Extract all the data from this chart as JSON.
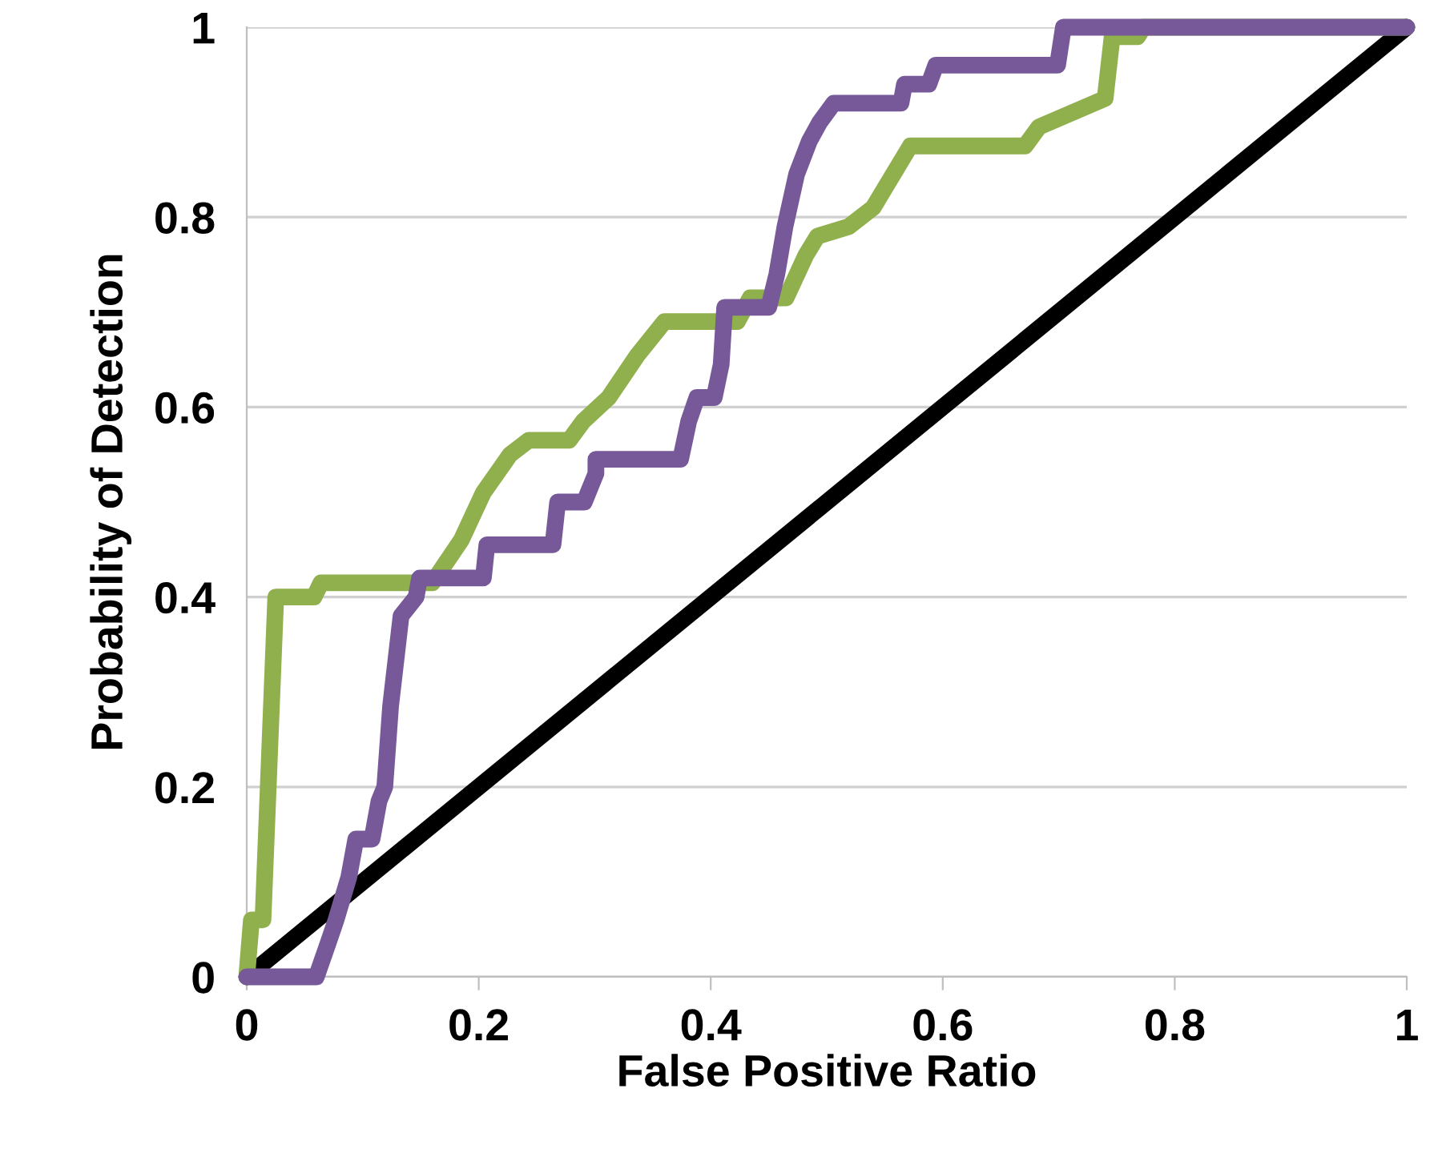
{
  "chart_data": {
    "type": "line",
    "xlabel": "False Positive Ratio",
    "ylabel": "Probability of Detection",
    "xlim": [
      0,
      1
    ],
    "ylim": [
      0,
      1
    ],
    "xticks": [
      0,
      0.2,
      0.4,
      0.6,
      0.8,
      1
    ],
    "yticks": [
      0,
      0.2,
      0.4,
      0.6,
      0.8,
      1
    ],
    "grid": "y",
    "marker": "none",
    "line_style": "solid",
    "series": [
      {
        "color": "#000000",
        "x": [
          0,
          1
        ],
        "values": [
          0,
          1
        ]
      },
      {
        "color": "#8fb04d",
        "x": [
          0,
          0.004,
          0.014,
          0.025,
          0.058,
          0.064,
          0.16,
          0.185,
          0.204,
          0.227,
          0.243,
          0.278,
          0.29,
          0.312,
          0.337,
          0.36,
          0.423,
          0.434,
          0.465,
          0.482,
          0.492,
          0.519,
          0.54,
          0.572,
          0.671,
          0.683,
          0.74,
          0.746,
          0.768,
          0.773,
          1
        ],
        "values": [
          0,
          0.06,
          0.06,
          0.4,
          0.4,
          0.415,
          0.415,
          0.46,
          0.51,
          0.55,
          0.565,
          0.565,
          0.585,
          0.61,
          0.655,
          0.69,
          0.69,
          0.715,
          0.715,
          0.76,
          0.78,
          0.79,
          0.81,
          0.875,
          0.875,
          0.895,
          0.925,
          0.99,
          0.99,
          1,
          1
        ]
      },
      {
        "color": "#77599a",
        "x": [
          0,
          0.06,
          0.07,
          0.077,
          0.088,
          0.094,
          0.108,
          0.114,
          0.119,
          0.124,
          0.133,
          0.146,
          0.149,
          0.204,
          0.207,
          0.264,
          0.268,
          0.291,
          0.301,
          0.301,
          0.374,
          0.381,
          0.388,
          0.403,
          0.409,
          0.412,
          0.45,
          0.457,
          0.464,
          0.474,
          0.485,
          0.494,
          0.506,
          0.564,
          0.567,
          0.588,
          0.594,
          0.699,
          0.704,
          1
        ],
        "values": [
          0,
          0,
          0.035,
          0.06,
          0.105,
          0.145,
          0.145,
          0.185,
          0.2,
          0.285,
          0.38,
          0.4,
          0.42,
          0.42,
          0.455,
          0.455,
          0.5,
          0.5,
          0.53,
          0.545,
          0.545,
          0.585,
          0.61,
          0.61,
          0.645,
          0.705,
          0.705,
          0.74,
          0.79,
          0.845,
          0.88,
          0.9,
          0.92,
          0.92,
          0.94,
          0.94,
          0.96,
          0.96,
          1,
          1
        ]
      }
    ]
  }
}
